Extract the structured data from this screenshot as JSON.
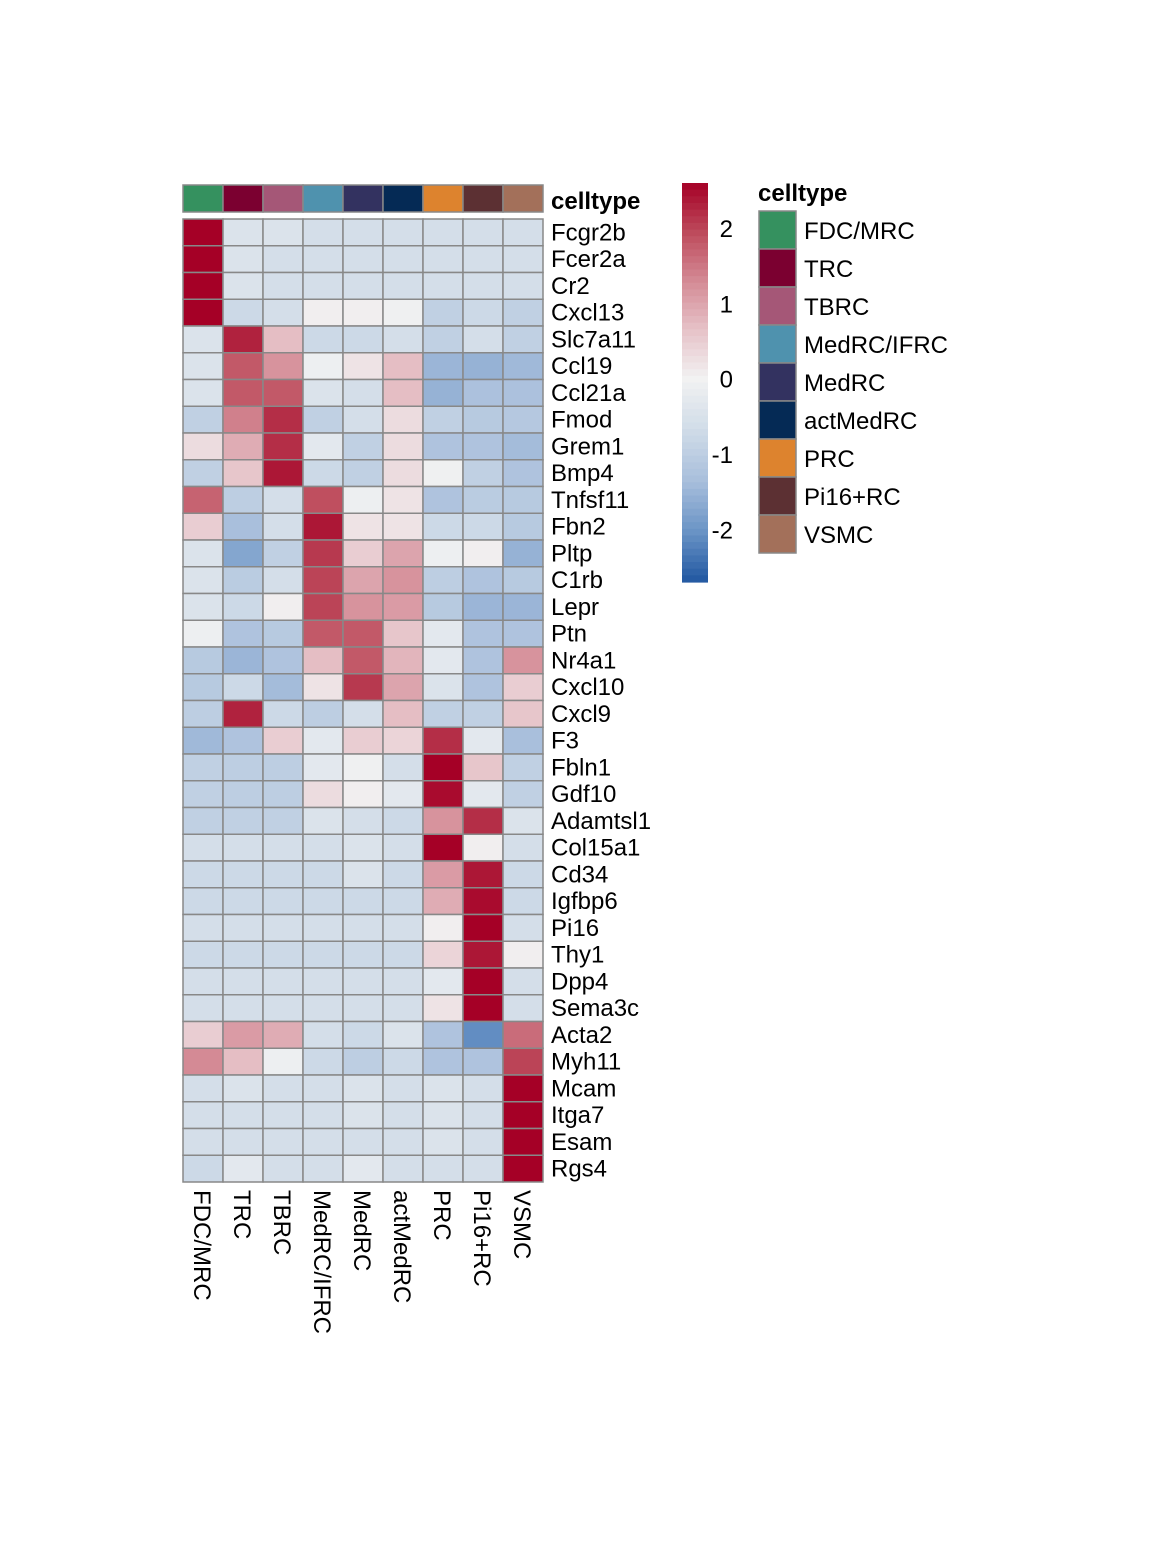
{
  "chart_data": {
    "type": "heatmap",
    "title": "",
    "columns": [
      "FDC/MRC",
      "TRC",
      "TBRC",
      "MedRC/IFRC",
      "MedRC",
      "actMedRC",
      "PRC",
      "Pi16+RC",
      "VSMC"
    ],
    "rows": [
      "Fcgr2b",
      "Fcer2a",
      "Cr2",
      "Cxcl13",
      "Slc7a11",
      "Ccl19",
      "Ccl21a",
      "Fmod",
      "Grem1",
      "Bmp4",
      "Tnfsf11",
      "Fbn2",
      "Pltp",
      "C1rb",
      "Lepr",
      "Ptn",
      "Nr4a1",
      "Cxcl10",
      "Cxcl9",
      "F3",
      "Fbln1",
      "Gdf10",
      "Adamtsl1",
      "Col15a1",
      "Cd34",
      "Igfbp6",
      "Pi16",
      "Thy1",
      "Dpp4",
      "Sema3c",
      "Acta2",
      "Myh11",
      "Mcam",
      "Itga7",
      "Esam",
      "Rgs4"
    ],
    "values": [
      [
        2.6,
        -0.45,
        -0.45,
        -0.6,
        -0.6,
        -0.6,
        -0.6,
        -0.6,
        -0.6
      ],
      [
        2.6,
        -0.45,
        -0.6,
        -0.6,
        -0.6,
        -0.6,
        -0.6,
        -0.6,
        -0.6
      ],
      [
        2.6,
        -0.45,
        -0.6,
        -0.6,
        -0.6,
        -0.6,
        -0.6,
        -0.6,
        -0.6
      ],
      [
        2.6,
        -0.75,
        -0.6,
        0.05,
        0.05,
        -0.05,
        -0.95,
        -0.75,
        -0.95
      ],
      [
        -0.45,
        2.3,
        0.7,
        -0.75,
        -0.75,
        -0.6,
        -0.95,
        -0.6,
        -0.95
      ],
      [
        -0.45,
        1.8,
        1.2,
        -0.1,
        0.2,
        0.7,
        -1.5,
        -1.55,
        -1.45
      ],
      [
        -0.45,
        1.8,
        1.8,
        -0.45,
        -0.6,
        0.7,
        -1.55,
        -1.3,
        -1.3
      ],
      [
        -0.95,
        1.4,
        2.2,
        -0.95,
        -0.6,
        0.3,
        -0.95,
        -1.1,
        -1.15
      ],
      [
        0.3,
        0.9,
        2.2,
        -0.3,
        -0.95,
        0.3,
        -1.25,
        -1.25,
        -1.4
      ],
      [
        -0.95,
        0.6,
        2.4,
        -0.75,
        -0.95,
        0.3,
        -0.05,
        -0.95,
        -1.25
      ],
      [
        1.7,
        -1.0,
        -0.6,
        1.9,
        -0.1,
        0.2,
        -1.25,
        -1.05,
        -1.1
      ],
      [
        0.5,
        -1.35,
        -0.6,
        2.4,
        0.2,
        0.2,
        -0.75,
        -0.75,
        -1.1
      ],
      [
        -0.45,
        -1.75,
        -0.95,
        2.1,
        0.5,
        1.0,
        -0.1,
        0.05,
        -1.55
      ],
      [
        -0.45,
        -1.05,
        -0.6,
        2.0,
        1.0,
        1.2,
        -1.0,
        -1.25,
        -1.1
      ],
      [
        -0.45,
        -0.75,
        0.05,
        2.0,
        1.2,
        1.1,
        -1.1,
        -1.5,
        -1.5
      ],
      [
        -0.1,
        -1.25,
        -1.1,
        1.8,
        1.8,
        0.6,
        -0.3,
        -1.25,
        -1.25
      ],
      [
        -1.1,
        -1.5,
        -1.25,
        0.7,
        1.8,
        0.8,
        -0.3,
        -1.25,
        1.2
      ],
      [
        -1.1,
        -0.75,
        -1.4,
        0.2,
        2.1,
        1.0,
        -0.45,
        -1.25,
        0.5
      ],
      [
        -1.0,
        2.3,
        -0.75,
        -1.0,
        -0.6,
        0.7,
        -0.95,
        -0.95,
        0.6
      ],
      [
        -1.45,
        -1.25,
        0.5,
        -0.3,
        0.5,
        0.4,
        2.2,
        -0.3,
        -1.35
      ],
      [
        -0.95,
        -1.0,
        -1.0,
        -0.3,
        -0.05,
        -0.6,
        2.6,
        0.6,
        -0.95
      ],
      [
        -0.95,
        -1.0,
        -1.0,
        0.3,
        0.05,
        -0.3,
        2.5,
        -0.3,
        -0.95
      ],
      [
        -0.95,
        -0.95,
        -0.95,
        -0.45,
        -0.6,
        -0.75,
        1.2,
        2.2,
        -0.45
      ],
      [
        -0.6,
        -0.6,
        -0.6,
        -0.6,
        -0.45,
        -0.6,
        2.6,
        0.05,
        -0.6
      ],
      [
        -0.75,
        -0.75,
        -0.75,
        -0.75,
        -0.45,
        -0.75,
        1.1,
        2.4,
        -0.75
      ],
      [
        -0.75,
        -0.75,
        -0.75,
        -0.75,
        -0.75,
        -0.75,
        0.9,
        2.5,
        -0.75
      ],
      [
        -0.6,
        -0.6,
        -0.6,
        -0.6,
        -0.6,
        -0.6,
        0.05,
        2.6,
        -0.6
      ],
      [
        -0.75,
        -0.75,
        -0.75,
        -0.75,
        -0.75,
        -0.75,
        0.4,
        2.4,
        0.05
      ],
      [
        -0.6,
        -0.6,
        -0.6,
        -0.6,
        -0.6,
        -0.6,
        -0.3,
        2.6,
        -0.6
      ],
      [
        -0.6,
        -0.6,
        -0.6,
        -0.6,
        -0.6,
        -0.6,
        0.2,
        2.6,
        -0.6
      ],
      [
        0.5,
        1.1,
        0.9,
        -0.6,
        -0.75,
        -0.45,
        -1.25,
        -2.1,
        1.6
      ],
      [
        1.3,
        0.7,
        -0.1,
        -0.75,
        -1.0,
        -0.75,
        -1.25,
        -1.25,
        2.0
      ],
      [
        -0.6,
        -0.45,
        -0.6,
        -0.6,
        -0.45,
        -0.6,
        -0.45,
        -0.6,
        2.6
      ],
      [
        -0.6,
        -0.6,
        -0.6,
        -0.6,
        -0.45,
        -0.6,
        -0.45,
        -0.6,
        2.6
      ],
      [
        -0.6,
        -0.6,
        -0.6,
        -0.6,
        -0.6,
        -0.6,
        -0.45,
        -0.6,
        2.6
      ],
      [
        -0.75,
        -0.3,
        -0.6,
        -0.6,
        -0.3,
        -0.6,
        -0.6,
        -0.6,
        2.6
      ]
    ],
    "annotation": {
      "title": "celltype",
      "colors": {
        "FDC/MRC": "#35915F",
        "TRC": "#7B0030",
        "TBRC": "#A55777",
        "MedRC/IFRC": "#4F92AE",
        "MedRC": "#333260",
        "actMedRC": "#052A55",
        "PRC": "#DD832E",
        "Pi16+RC": "#5C3033",
        "VSMC": "#A3705A"
      }
    },
    "colorbar": {
      "ticks": [
        2,
        1,
        0,
        -1,
        -2
      ],
      "range": [
        -2.7,
        2.6
      ],
      "low_color": "#2157A1",
      "mid_color": "#F2F2F2",
      "high_color": "#A50026"
    },
    "legend_placement": "right"
  }
}
